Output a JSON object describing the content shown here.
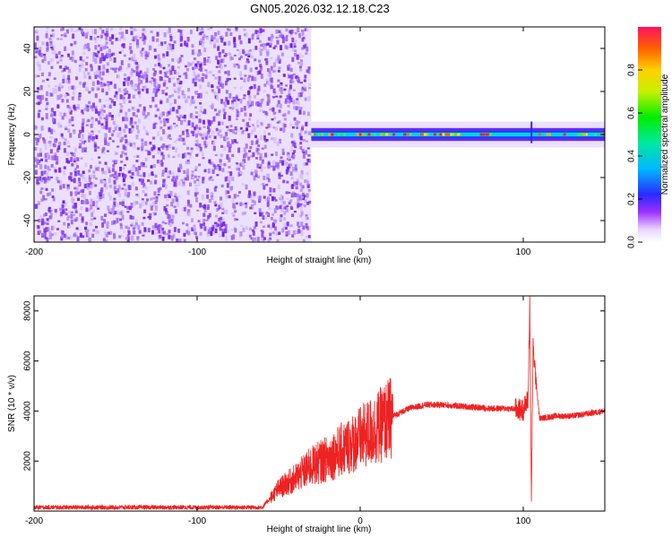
{
  "title": "GN05.2026.032.12.18.C23",
  "chart_data": [
    {
      "type": "heatmap",
      "xlabel": "Height of straight line (km)",
      "ylabel": "Frequency (Hz)",
      "xlim": [
        -200,
        150
      ],
      "ylim": [
        -50,
        50
      ],
      "xticks": [
        "-200",
        "-100",
        "0",
        "100"
      ],
      "xtick_values": [
        -200,
        -100,
        0,
        100
      ],
      "yticks": [
        "-40",
        "-20",
        "0",
        "20",
        "40"
      ],
      "ytick_values": [
        -40,
        -20,
        0,
        20,
        40
      ],
      "noise_region_x": [
        -200,
        -30
      ],
      "signal_band_hz": [
        -3,
        3
      ],
      "colorbar": {
        "label": "Normalized spectral amplitude",
        "range": [
          0,
          1
        ],
        "ticks": [
          "0.0",
          "0.2",
          "0.4",
          "0.6",
          "0.8"
        ],
        "tick_values": [
          0.0,
          0.2,
          0.4,
          0.6,
          0.8
        ]
      },
      "grid": false
    },
    {
      "type": "line",
      "xlabel": "Height of straight line (km)",
      "ylabel": "SNR (10 * v/v)",
      "xlim": [
        -200,
        150
      ],
      "ylim": [
        0,
        8600
      ],
      "xticks": [
        "-200",
        "-100",
        "0",
        "100"
      ],
      "xtick_values": [
        -200,
        -100,
        0,
        100
      ],
      "yticks": [
        "2000",
        "4000",
        "6000",
        "8000"
      ],
      "ytick_values": [
        2000,
        4000,
        6000,
        8000
      ],
      "line_color": "#ee2222",
      "series": [
        {
          "x": [
            -200,
            -150,
            -100,
            -60,
            -50,
            -40,
            -30,
            -20,
            -10,
            0,
            10,
            20,
            30,
            40,
            50,
            60,
            70,
            80,
            90,
            100,
            103,
            104,
            105,
            106,
            110,
            120,
            130,
            140,
            150
          ],
          "values": [
            150,
            150,
            150,
            150,
            900,
            1300,
            1800,
            2100,
            2500,
            2900,
            3300,
            3800,
            4100,
            4250,
            4250,
            4200,
            4150,
            4100,
            4100,
            4050,
            4500,
            8500,
            300,
            6500,
            3700,
            3800,
            3800,
            3900,
            4000
          ]
        }
      ],
      "grid": false
    }
  ]
}
